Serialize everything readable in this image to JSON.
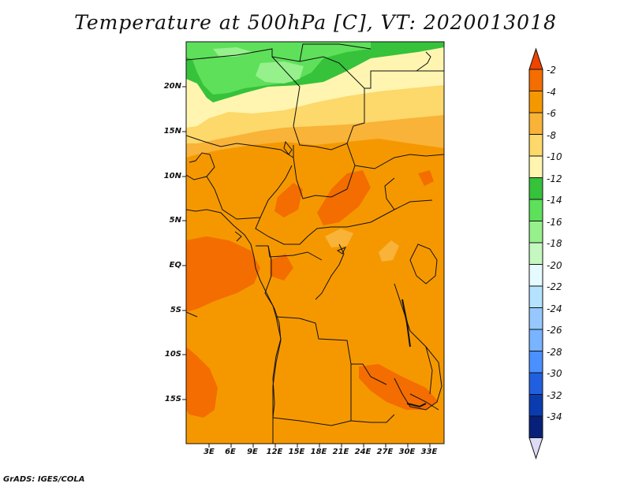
{
  "title": "Temperature at 500hPa [C], VT: 2020013018",
  "credit": "GrADS: IGES/COLA",
  "map": {
    "lat_labels": [
      "20N",
      "15N",
      "10N",
      "5N",
      "EQ",
      "5S",
      "10S",
      "15S"
    ],
    "lon_labels": [
      "3E",
      "6E",
      "9E",
      "12E",
      "15E",
      "18E",
      "21E",
      "24E",
      "27E",
      "30E",
      "33E"
    ]
  },
  "colorbar": {
    "labels": [
      "-2",
      "-4",
      "-6",
      "-8",
      "-10",
      "-12",
      "-14",
      "-16",
      "-18",
      "-20",
      "-22",
      "-24",
      "-26",
      "-28",
      "-30",
      "-32",
      "-34"
    ],
    "colors": [
      "#ee4400",
      "#f46d00",
      "#f59800",
      "#f8b338",
      "#fdd86a",
      "#fff5b0",
      "#36c23a",
      "#5ee05a",
      "#96f08c",
      "#c4f8c0",
      "#e6fbff",
      "#b4e2ff",
      "#96c8ff",
      "#78b4ff",
      "#4a90ff",
      "#2060e0",
      "#0a3cb0",
      "#08207a",
      "#dcdcf8"
    ]
  }
}
